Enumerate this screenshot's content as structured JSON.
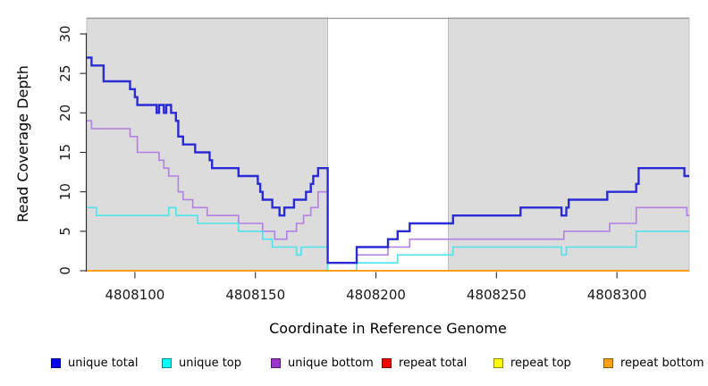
{
  "chart_data": {
    "type": "line",
    "step": true,
    "xlabel": "Coordinate in Reference Genome",
    "ylabel": "Read Coverage Depth",
    "xlim": [
      4808080,
      4808330
    ],
    "ylim": [
      0,
      32
    ],
    "x_ticks": [
      4808100,
      4808150,
      4808200,
      4808250,
      4808300
    ],
    "y_ticks": [
      0,
      5,
      10,
      15,
      20,
      25,
      30
    ],
    "grid": false,
    "legend_position": "bottom",
    "background_shading": {
      "color": "#dcdcdc",
      "border_color": "#b8b8b8",
      "regions": [
        {
          "from": 4808080,
          "to": 4808180
        },
        {
          "from": 4808230,
          "to": 4808330
        }
      ],
      "unshaded_gap": {
        "from": 4808180,
        "to": 4808230
      }
    },
    "series": [
      {
        "name": "unique bottom",
        "line_color": "#b27fe3",
        "legend_color": "#9933cc",
        "line_width": 1.6,
        "points": [
          [
            4808080,
            19
          ],
          [
            4808082,
            18
          ],
          [
            4808098,
            17
          ],
          [
            4808101,
            15
          ],
          [
            4808110,
            14
          ],
          [
            4808112,
            13
          ],
          [
            4808114,
            12
          ],
          [
            4808118,
            10
          ],
          [
            4808120,
            9
          ],
          [
            4808124,
            8
          ],
          [
            4808130,
            7
          ],
          [
            4808143,
            6
          ],
          [
            4808153,
            5
          ],
          [
            4808158,
            4
          ],
          [
            4808163,
            5
          ],
          [
            4808167,
            6
          ],
          [
            4808170,
            7
          ],
          [
            4808173,
            8
          ],
          [
            4808176,
            10
          ],
          [
            4808180,
            1
          ],
          [
            4808192,
            2
          ],
          [
            4808205,
            3
          ],
          [
            4808214,
            4
          ],
          [
            4808278,
            5
          ],
          [
            4808297,
            6
          ],
          [
            4808308,
            8
          ],
          [
            4808329,
            7
          ]
        ]
      },
      {
        "name": "unique top",
        "line_color": "#4fe2ea",
        "legend_color": "#00ffff",
        "line_width": 1.6,
        "points": [
          [
            4808080,
            8
          ],
          [
            4808084,
            7
          ],
          [
            4808114,
            8
          ],
          [
            4808117,
            7
          ],
          [
            4808126,
            6
          ],
          [
            4808143,
            5
          ],
          [
            4808153,
            4
          ],
          [
            4808157,
            3
          ],
          [
            4808167,
            2
          ],
          [
            4808169,
            3
          ],
          [
            4808180,
            0
          ],
          [
            4808192,
            1
          ],
          [
            4808209,
            2
          ],
          [
            4808232,
            3
          ],
          [
            4808277,
            2
          ],
          [
            4808279,
            3
          ],
          [
            4808308,
            5
          ]
        ]
      },
      {
        "name": "unique total",
        "line_color": "#2b2bd5",
        "legend_color": "#0000ee",
        "line_width": 2.4,
        "points": [
          [
            4808080,
            27
          ],
          [
            4808082,
            26
          ],
          [
            4808087,
            24
          ],
          [
            4808098,
            23
          ],
          [
            4808100,
            22
          ],
          [
            4808101,
            21
          ],
          [
            4808109,
            20
          ],
          [
            4808110,
            21
          ],
          [
            4808112,
            20
          ],
          [
            4808113,
            21
          ],
          [
            4808115,
            20
          ],
          [
            4808117,
            19
          ],
          [
            4808118,
            17
          ],
          [
            4808120,
            16
          ],
          [
            4808125,
            15
          ],
          [
            4808131,
            14
          ],
          [
            4808132,
            13
          ],
          [
            4808143,
            12
          ],
          [
            4808151,
            11
          ],
          [
            4808152,
            10
          ],
          [
            4808153,
            9
          ],
          [
            4808157,
            8
          ],
          [
            4808160,
            7
          ],
          [
            4808162,
            8
          ],
          [
            4808166,
            9
          ],
          [
            4808171,
            10
          ],
          [
            4808173,
            11
          ],
          [
            4808174,
            12
          ],
          [
            4808176,
            13
          ],
          [
            4808180,
            1
          ],
          [
            4808192,
            3
          ],
          [
            4808205,
            4
          ],
          [
            4808209,
            5
          ],
          [
            4808214,
            6
          ],
          [
            4808232,
            7
          ],
          [
            4808260,
            8
          ],
          [
            4808277,
            7
          ],
          [
            4808279,
            8
          ],
          [
            4808280,
            9
          ],
          [
            4808296,
            10
          ],
          [
            4808308,
            11
          ],
          [
            4808309,
            13
          ],
          [
            4808328,
            12
          ]
        ]
      },
      {
        "name": "repeat total",
        "line_color": "#dd0000",
        "legend_color": "#ee0000",
        "line_width": 1.5,
        "points": [
          [
            4808080,
            0
          ]
        ]
      },
      {
        "name": "repeat top",
        "line_color": "#ffff00",
        "legend_color": "#ffff00",
        "line_width": 1.5,
        "points": [
          [
            4808080,
            0
          ]
        ]
      },
      {
        "name": "repeat bottom",
        "line_color": "#ff9f1a",
        "legend_color": "#ffa012",
        "line_width": 2.0,
        "points": [
          [
            4808080,
            0
          ]
        ]
      }
    ],
    "legend": [
      {
        "label": "unique total",
        "color": "#0000ee"
      },
      {
        "label": "unique top",
        "color": "#00ffff"
      },
      {
        "label": "unique bottom",
        "color": "#9933cc"
      },
      {
        "label": "repeat total",
        "color": "#ee0000"
      },
      {
        "label": "repeat top",
        "color": "#ffff00"
      },
      {
        "label": "repeat bottom",
        "color": "#ffa012"
      }
    ]
  }
}
